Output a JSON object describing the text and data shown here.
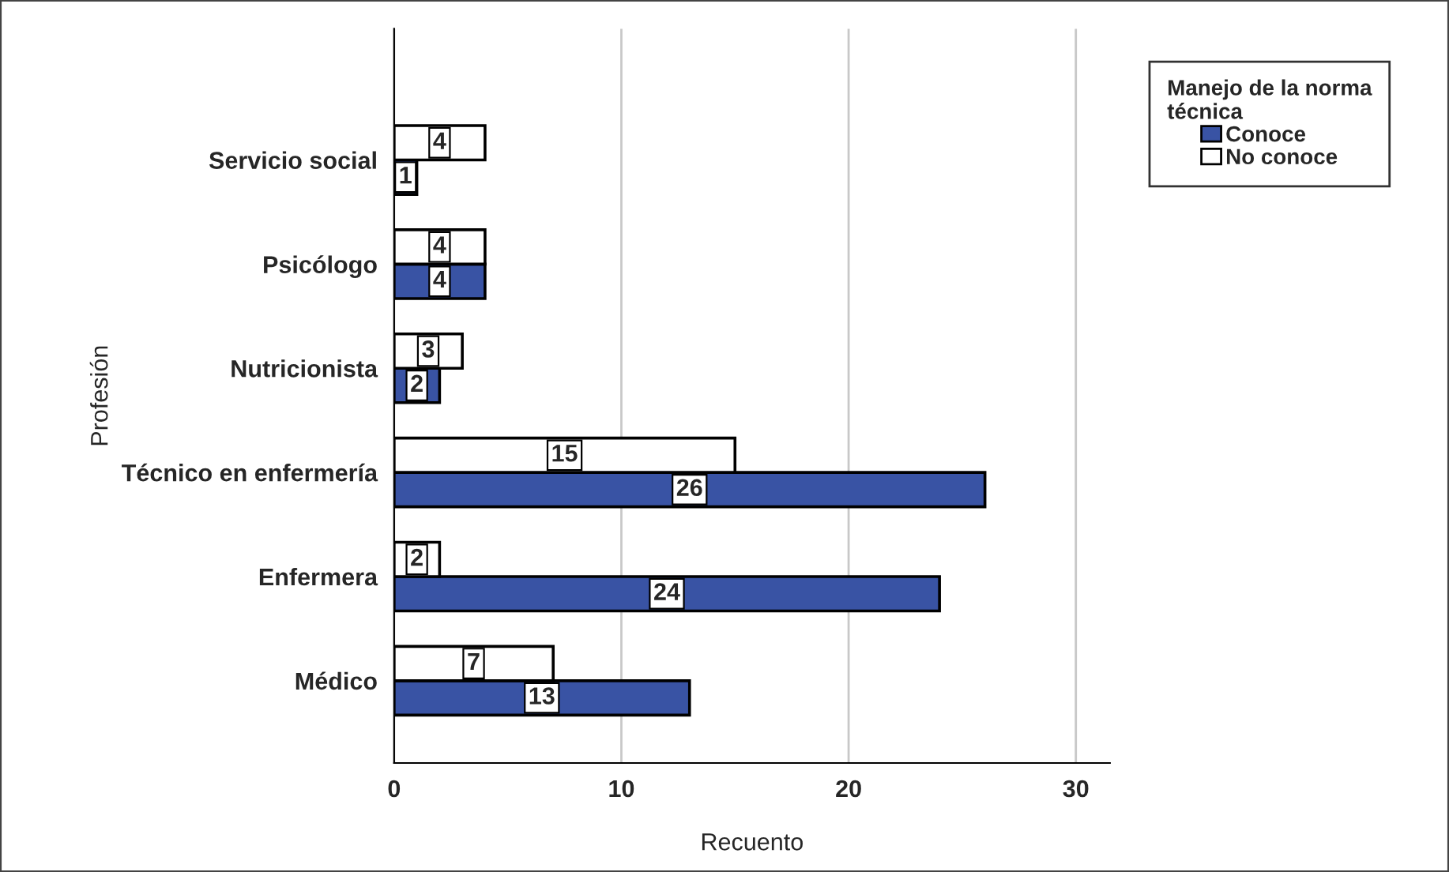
{
  "chart_data": {
    "type": "bar",
    "orientation": "horizontal",
    "xlabel": "Recuento",
    "ylabel": "Profesión",
    "legend_title": "Manejo de la norma técnica",
    "categories": [
      "Servicio social",
      "Psicólogo",
      "Nutricionista",
      "Técnico en enfermería",
      "Enfermera",
      "Médico"
    ],
    "series": [
      {
        "name": "Conoce",
        "color": "#3953a4",
        "values": [
          1,
          4,
          2,
          26,
          24,
          13
        ]
      },
      {
        "name": "No conoce",
        "color": "#ffffff",
        "values": [
          4,
          4,
          3,
          15,
          2,
          7
        ]
      }
    ],
    "xlim": [
      0,
      31.5
    ],
    "xticks": [
      0,
      10,
      20,
      30
    ],
    "grid": "x",
    "legend": "top right",
    "data_labels": true
  }
}
